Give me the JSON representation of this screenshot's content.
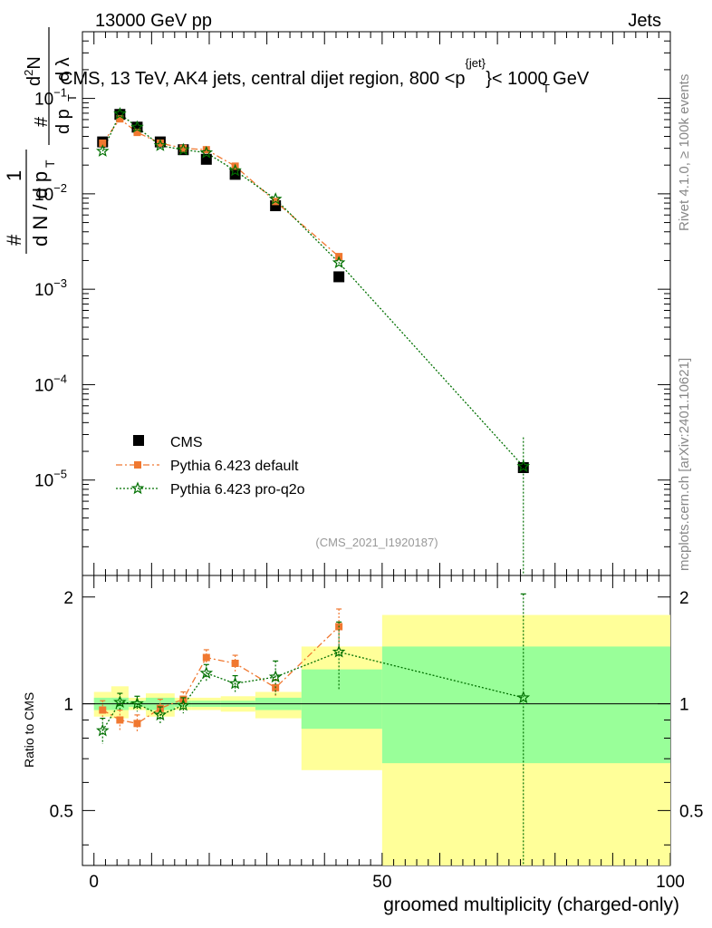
{
  "header": {
    "left": "13000 GeV pp",
    "right": "Jets"
  },
  "side_labels": {
    "rivet": "Rivet 4.1.0, ≥ 100k events",
    "mcplots": "mcplots.cern.ch [arXiv:2401.10621]"
  },
  "colors": {
    "cms": "#000000",
    "default": "#f07830",
    "proq2o": "#007000",
    "band_inner": "#99ff99",
    "band_outer": "#ffff99"
  },
  "chart_data": [
    {
      "type": "scatter",
      "panel": "main",
      "title": "CMS, 13 TeV, AK4 jets, central dijet region, 800 <p_T^{jet}< 1000 GeV",
      "title_parts": {
        "prefix": "CMS, 13 TeV, AK4 jets, central dijet region, 800 <p",
        "sub": "T",
        "sup": "{jet}",
        "suffix": "}< 1000 GeV"
      },
      "ylabel_parts": {
        "one": "1",
        "hash": "#",
        "dN": "d N / d p",
        "T": "T",
        "d2N": "d",
        "two": "2",
        "N": "N",
        "dpT": "d p",
        "dlambda": "d λ",
        "T2": "T"
      },
      "yscale": "log",
      "ylim": [
        1e-06,
        0.5
      ],
      "xlim": [
        -2,
        100
      ],
      "y_ticks": [
        {
          "value": 0.1,
          "base": "10",
          "exp": "−1"
        },
        {
          "value": 0.01,
          "base": "10",
          "exp": "−2"
        },
        {
          "value": 0.001,
          "base": "10",
          "exp": "−3"
        },
        {
          "value": 0.0001,
          "base": "10",
          "exp": "−4"
        },
        {
          "value": 1e-05,
          "base": "10",
          "exp": "−5"
        }
      ],
      "watermark": "(CMS_2021_I1920187)",
      "legend_position": "middle-left",
      "series": [
        {
          "name": "CMS",
          "marker": "square",
          "x": [
            1.5,
            4.5,
            7.5,
            11.5,
            15.5,
            19.5,
            24.5,
            31.5,
            42.5,
            74.5
          ],
          "y": [
            0.035,
            0.068,
            0.05,
            0.035,
            0.029,
            0.023,
            0.016,
            0.0075,
            0.00135,
            1.35e-05
          ]
        },
        {
          "name": "Pythia 6.423 default",
          "marker": "filled-square",
          "x": [
            1.5,
            4.5,
            7.5,
            11.5,
            15.5,
            19.5,
            24.5,
            31.5,
            42.5
          ],
          "y": [
            0.034,
            0.061,
            0.044,
            0.034,
            0.03,
            0.029,
            0.0195,
            0.0083,
            0.0022
          ]
        },
        {
          "name": "Pythia 6.423 pro-q2o",
          "marker": "star",
          "x": [
            1.5,
            4.5,
            7.5,
            11.5,
            15.5,
            19.5,
            24.5,
            31.5,
            42.5,
            74.5
          ],
          "y": [
            0.028,
            0.069,
            0.05,
            0.032,
            0.029,
            0.027,
            0.0175,
            0.0088,
            0.0019,
            1.39e-05
          ]
        }
      ]
    },
    {
      "type": "scatter",
      "panel": "ratio",
      "ylabel": "Ratio to CMS",
      "xlabel": "groomed multiplicity (charged-only)",
      "xlim": [
        -2,
        100
      ],
      "ylim": [
        0.35,
        2.3
      ],
      "x_ticks": [
        0,
        50,
        100
      ],
      "y_ticks": [
        0.5,
        1,
        2
      ],
      "bins": [
        {
          "lo": 0,
          "hi": 3,
          "inner": [
            0.96,
            1.04
          ],
          "outer": [
            0.92,
            1.08
          ]
        },
        {
          "lo": 3,
          "hi": 6,
          "inner": [
            0.96,
            1.04
          ],
          "outer": [
            0.91,
            1.12
          ]
        },
        {
          "lo": 6,
          "hi": 9,
          "inner": [
            0.98,
            1.02
          ],
          "outer": [
            0.96,
            1.04
          ]
        },
        {
          "lo": 9,
          "hi": 14,
          "inner": [
            0.96,
            1.04
          ],
          "outer": [
            0.92,
            1.07
          ]
        },
        {
          "lo": 14,
          "hi": 17,
          "inner": [
            0.98,
            1.02
          ],
          "outer": [
            0.96,
            1.04
          ]
        },
        {
          "lo": 17,
          "hi": 22,
          "inner": [
            0.98,
            1.02
          ],
          "outer": [
            0.96,
            1.04
          ]
        },
        {
          "lo": 22,
          "hi": 28,
          "inner": [
            0.98,
            1.02
          ],
          "outer": [
            0.95,
            1.05
          ]
        },
        {
          "lo": 28,
          "hi": 36,
          "inner": [
            0.96,
            1.04
          ],
          "outer": [
            0.91,
            1.08
          ]
        },
        {
          "lo": 36,
          "hi": 50,
          "inner": [
            0.85,
            1.25
          ],
          "outer": [
            0.65,
            1.45
          ]
        },
        {
          "lo": 50,
          "hi": 100,
          "inner": [
            0.68,
            1.45
          ],
          "outer": [
            0.35,
            1.78
          ]
        }
      ],
      "series": [
        {
          "name": "Pythia 6.423 default",
          "x": [
            1.5,
            4.5,
            7.5,
            11.5,
            15.5,
            19.5,
            24.5,
            31.5,
            42.5
          ],
          "y": [
            0.96,
            0.9,
            0.88,
            0.97,
            1.03,
            1.35,
            1.3,
            1.11,
            1.65
          ],
          "err": [
            0.06,
            0.06,
            0.05,
            0.06,
            0.05,
            0.07,
            0.07,
            0.06,
            0.2
          ]
        },
        {
          "name": "Pythia 6.423 pro-q2o",
          "x": [
            1.5,
            4.5,
            7.5,
            11.5,
            15.5,
            19.5,
            24.5,
            31.5,
            42.5,
            74.5
          ],
          "y": [
            0.84,
            1.01,
            1.0,
            0.93,
            0.99,
            1.22,
            1.14,
            1.19,
            1.4,
            1.04
          ],
          "err": [
            0.07,
            0.06,
            0.05,
            0.05,
            0.05,
            0.07,
            0.06,
            0.13,
            0.3,
            1.0
          ]
        }
      ]
    }
  ]
}
